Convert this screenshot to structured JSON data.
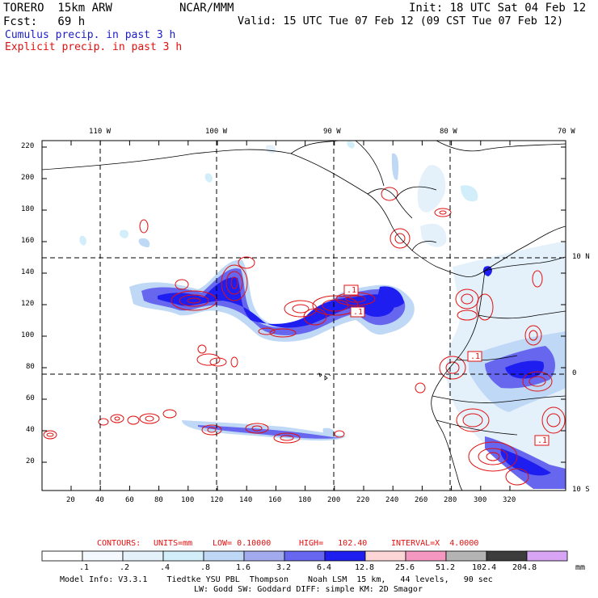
{
  "header": {
    "model": "TORERO  15km ARW",
    "org": "NCAR/MMM",
    "init": "Init: 18 UTC Sat 04 Feb 12",
    "fcst": "Fcst:   69 h",
    "valid": "Valid: 15 UTC Tue 07 Feb 12 (09 CST Tue 07 Feb 12)",
    "legend_cumulus": "Cumulus precip. in past 3 h",
    "legend_explicit": "Explicit precip. in past 3 h"
  },
  "axes": {
    "top_lon_labels": [
      "110 W",
      "100 W",
      "90 W",
      "80 W",
      "70 W"
    ],
    "right_lat_labels": [
      "10 N",
      "0",
      "10 S"
    ],
    "left_grid_labels": [
      "220",
      "200",
      "180",
      "160",
      "140",
      "120",
      "100",
      "80",
      "60",
      "40",
      "20"
    ],
    "bottom_grid_labels": [
      "20",
      "40",
      "60",
      "80",
      "100",
      "120",
      "140",
      "160",
      "180",
      "200",
      "220",
      "240",
      "260",
      "280",
      "300",
      "320"
    ]
  },
  "contours_line": {
    "title": "CONTOURS:",
    "units": "UNITS=mm",
    "low": "LOW= 0.10000",
    "high": "HIGH=   102.40",
    "interval": "INTERVAL=X  4.0000"
  },
  "map_labels": {
    "extrema": [
      ".1",
      ".1",
      ".1",
      ".1"
    ]
  },
  "colorbar": {
    "unit": "mm",
    "labels": [
      ".1",
      ".2",
      ".4",
      ".8",
      "1.6",
      "3.2",
      "6.4",
      "12.8",
      "25.6",
      "51.2",
      "102.4",
      "204.8"
    ],
    "colors": [
      "#ffffff",
      "#f4f8ff",
      "#e4f1fb",
      "#d2eefa",
      "#bed8f6",
      "#a3abef",
      "#6666ee",
      "#1e1ef0",
      "#fcd6d6",
      "#f498c2",
      "#b4b4b4",
      "#3c3c3c",
      "#d8a4f4"
    ]
  },
  "footer": {
    "line1": "Model Info: V3.3.1    Tiedtke YSU PBL  Thompson    Noah LSM  15 km,   44 levels,   90 sec",
    "line2": "LW: Godd SW: Goddard DIFF: simple KM: 2D Smagor"
  }
}
